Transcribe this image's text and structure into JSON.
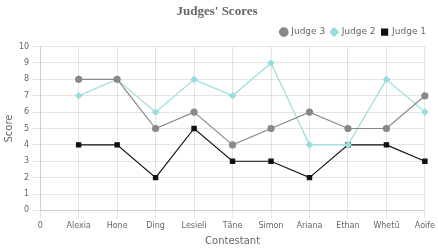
{
  "chart_data": {
    "type": "line",
    "title": "Judges' Scores",
    "x_label": "Contestant",
    "y_label": "Score",
    "categories": [
      "0",
      "Alexia",
      "Hone",
      "Ding",
      "Lesieli",
      "Tāne",
      "Simon",
      "Ariana",
      "Ethan",
      "Whetū",
      "Aoife"
    ],
    "series": [
      {
        "name": "Judge 3",
        "color": "#888888",
        "marker": "circle",
        "values": [
          null,
          8,
          8,
          5,
          6,
          4,
          5,
          6,
          5,
          5,
          7
        ]
      },
      {
        "name": "Judge 2",
        "color": "#99dddd",
        "marker": "diamond",
        "values": [
          null,
          7,
          8,
          6,
          8,
          7,
          9,
          4,
          4,
          8,
          6
        ]
      },
      {
        "name": "Judge 1",
        "color": "#111111",
        "marker": "square",
        "values": [
          null,
          4,
          4,
          2,
          5,
          3,
          3,
          2,
          4,
          4,
          3
        ]
      }
    ],
    "ylim": [
      0,
      10
    ],
    "yticks": [
      0,
      1,
      2,
      3,
      4,
      5,
      6,
      7,
      8,
      9,
      10
    ],
    "grid": true,
    "legend": "upper right"
  }
}
